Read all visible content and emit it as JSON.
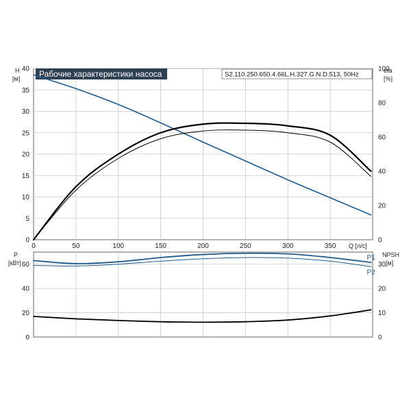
{
  "header": {
    "title": "Рабочие характеристики насоса",
    "model": "S2.110.250.650.4.66L.H.327.G.N.D.513, 50Hz"
  },
  "colors": {
    "head": "#1f5a8a",
    "efficiency": "#000000",
    "power": "#1f5a8a",
    "npsh": "#000000",
    "grid": "#c8c8c8",
    "title_bg": "#2e3f52"
  },
  "chart_data": [
    {
      "type": "line",
      "panel": "top",
      "x_axis": {
        "label": "Q [л/с]",
        "range": [
          0,
          400
        ],
        "ticks": [
          0,
          50,
          100,
          150,
          200,
          250,
          300,
          350
        ]
      },
      "y_left": {
        "label_top": "H",
        "label_unit": "[м]",
        "range": [
          0,
          40
        ],
        "ticks": [
          0,
          5,
          10,
          15,
          20,
          25,
          30,
          35,
          40
        ]
      },
      "y_right": {
        "label_top": "eta",
        "label_unit": "[%]",
        "range": [
          0,
          100
        ],
        "ticks": [
          0,
          20,
          40,
          60,
          80,
          100
        ]
      },
      "grid": true,
      "series": [
        {
          "axis": "left",
          "role": "head",
          "x": [
            0,
            50,
            100,
            150,
            200,
            250,
            300,
            350,
            398
          ],
          "y": [
            38.5,
            35.3,
            31.6,
            27.3,
            22.8,
            18.4,
            14.0,
            9.8,
            5.8
          ]
        },
        {
          "axis": "right",
          "role": "efficiency-1",
          "x": [
            0,
            50,
            100,
            150,
            200,
            250,
            300,
            350,
            398
          ],
          "y": [
            0,
            31,
            50,
            62.5,
            67.5,
            68,
            66.5,
            61,
            40
          ]
        },
        {
          "axis": "right",
          "role": "efficiency-2",
          "x": [
            0,
            50,
            100,
            150,
            200,
            250,
            300,
            350,
            398
          ],
          "y": [
            0,
            29,
            47.5,
            59,
            63.5,
            64,
            62.5,
            57,
            37
          ]
        }
      ]
    },
    {
      "type": "line",
      "panel": "bottom",
      "x_axis": {
        "range": [
          0,
          400
        ]
      },
      "y_left": {
        "label_top": "P",
        "label_unit": "[кВт]",
        "range": [
          0,
          70
        ],
        "ticks": [
          0,
          20,
          40,
          60
        ]
      },
      "y_right": {
        "label_top": "NPSH",
        "label_unit": "[м]",
        "range": [
          0,
          35
        ],
        "ticks": [
          0,
          10,
          20,
          30
        ]
      },
      "grid": true,
      "series": [
        {
          "name": "P1",
          "axis": "left",
          "role": "power",
          "x": [
            0,
            50,
            100,
            150,
            200,
            250,
            300,
            350,
            398
          ],
          "y": [
            63,
            60.5,
            62,
            65.5,
            68,
            69,
            68.5,
            65.5,
            61.5
          ]
        },
        {
          "name": "P2",
          "axis": "left",
          "role": "power",
          "x": [
            0,
            50,
            100,
            150,
            200,
            250,
            300,
            350,
            398
          ],
          "y": [
            59,
            58.5,
            60,
            62.5,
            64.5,
            65.5,
            65,
            62.5,
            58
          ]
        },
        {
          "axis": "right",
          "role": "npsh",
          "x": [
            0,
            50,
            100,
            150,
            200,
            250,
            300,
            350,
            398
          ],
          "y": [
            8.5,
            7.5,
            6.8,
            6.3,
            6.1,
            6.3,
            7.0,
            8.7,
            11.2
          ]
        }
      ]
    }
  ]
}
